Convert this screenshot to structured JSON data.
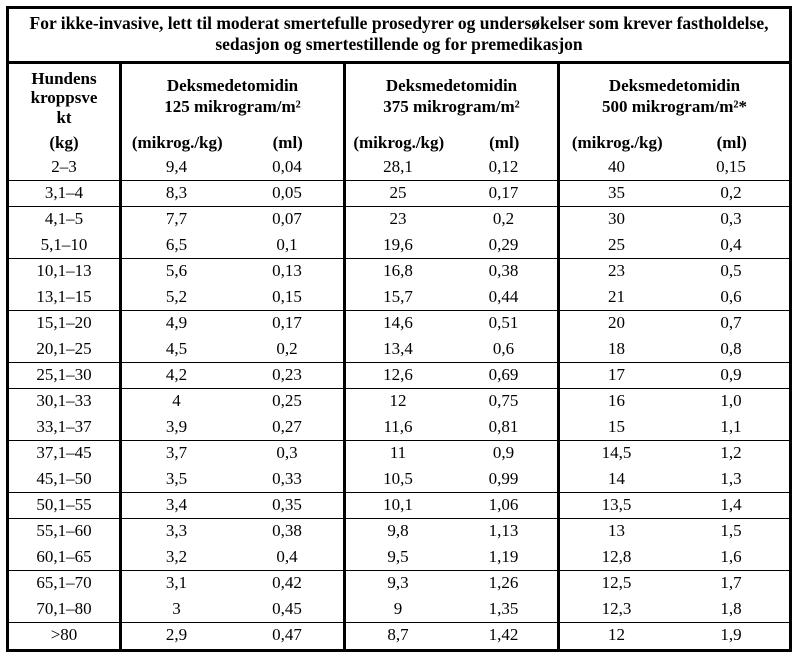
{
  "colors": {
    "background": "#ffffff",
    "line": "#000000",
    "text": "#000000"
  },
  "title": {
    "line1": "For ikke-invasive, lett til moderat smertefulle prosedyrer og undersøkelser som krever fastholdelse,",
    "line2": "sedasjon og smertestillende og for premedikasjon"
  },
  "table": {
    "weight_header": {
      "lines": [
        "Hundens",
        "kroppsve",
        "kt"
      ],
      "unit": "(kg)"
    },
    "groups": [
      {
        "name": "Deksmedetomidin",
        "dose": "125 mikrogram/m²",
        "unit_a": "(mikrog./kg)",
        "unit_b": "(ml)"
      },
      {
        "name": "Deksmedetomidin",
        "dose": "375 mikrogram/m²",
        "unit_a": "(mikrog./kg)",
        "unit_b": "(ml)"
      },
      {
        "name": "Deksmedetomidin",
        "dose": "500 mikrogram/m²*",
        "unit_a": "(mikrog./kg)",
        "unit_b": "(ml)"
      }
    ],
    "rows": [
      {
        "cells": [
          "2–3",
          "9,4",
          "0,04",
          "28,1",
          "0,12",
          "40",
          "0,15"
        ],
        "border_after": true
      },
      {
        "cells": [
          "3,1–4",
          "8,3",
          "0,05",
          "25",
          "0,17",
          "35",
          "0,2"
        ],
        "border_after": true
      },
      {
        "cells": [
          "4,1–5",
          "7,7",
          "0,07",
          "23",
          "0,2",
          "30",
          "0,3"
        ],
        "border_after": false
      },
      {
        "cells": [
          "5,1–10",
          "6,5",
          "0,1",
          "19,6",
          "0,29",
          "25",
          "0,4"
        ],
        "border_after": true
      },
      {
        "cells": [
          "10,1–13",
          "5,6",
          "0,13",
          "16,8",
          "0,38",
          "23",
          "0,5"
        ],
        "border_after": false
      },
      {
        "cells": [
          "13,1–15",
          "5,2",
          "0,15",
          "15,7",
          "0,44",
          "21",
          "0,6"
        ],
        "border_after": true
      },
      {
        "cells": [
          "15,1–20",
          "4,9",
          "0,17",
          "14,6",
          "0,51",
          "20",
          "0,7"
        ],
        "border_after": false
      },
      {
        "cells": [
          "20,1–25",
          "4,5",
          "0,2",
          "13,4",
          "0,6",
          "18",
          "0,8"
        ],
        "border_after": true
      },
      {
        "cells": [
          "25,1–30",
          "4,2",
          "0,23",
          "12,6",
          "0,69",
          "17",
          "0,9"
        ],
        "border_after": true
      },
      {
        "cells": [
          "30,1–33",
          "4",
          "0,25",
          "12",
          "0,75",
          "16",
          "1,0"
        ],
        "border_after": false
      },
      {
        "cells": [
          "33,1–37",
          "3,9",
          "0,27",
          "11,6",
          "0,81",
          "15",
          "1,1"
        ],
        "border_after": true
      },
      {
        "cells": [
          "37,1–45",
          "3,7",
          "0,3",
          "11",
          "0,9",
          "14,5",
          "1,2"
        ],
        "border_after": false
      },
      {
        "cells": [
          "45,1–50",
          "3,5",
          "0,33",
          "10,5",
          "0,99",
          "14",
          "1,3"
        ],
        "border_after": true
      },
      {
        "cells": [
          "50,1–55",
          "3,4",
          "0,35",
          "10,1",
          "1,06",
          "13,5",
          "1,4"
        ],
        "border_after": true
      },
      {
        "cells": [
          "55,1–60",
          "3,3",
          "0,38",
          "9,8",
          "1,13",
          "13",
          "1,5"
        ],
        "border_after": false
      },
      {
        "cells": [
          "60,1–65",
          "3,2",
          "0,4",
          "9,5",
          "1,19",
          "12,8",
          "1,6"
        ],
        "border_after": true
      },
      {
        "cells": [
          "65,1–70",
          "3,1",
          "0,42",
          "9,3",
          "1,26",
          "12,5",
          "1,7"
        ],
        "border_after": false
      },
      {
        "cells": [
          "70,1–80",
          "3",
          "0,45",
          "9",
          "1,35",
          "12,3",
          "1,8"
        ],
        "border_after": true
      },
      {
        "cells": [
          ">80",
          "2,9",
          "0,47",
          "8,7",
          "1,42",
          "12",
          "1,9"
        ],
        "border_after": false
      }
    ]
  }
}
